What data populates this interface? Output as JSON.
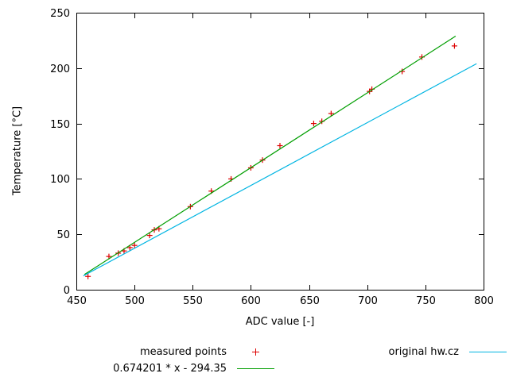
{
  "chart_data": {
    "type": "scatter",
    "title": "",
    "xlabel": "ADC value [-]",
    "ylabel": "Temperature [°C]",
    "xlim": [
      450,
      800
    ],
    "ylim": [
      0,
      250
    ],
    "xticks": [
      450,
      500,
      550,
      600,
      650,
      700,
      750,
      800
    ],
    "yticks": [
      0,
      50,
      100,
      150,
      200,
      250
    ],
    "grid": false,
    "legend_position": "below",
    "series": [
      {
        "name": "measured points",
        "type": "points",
        "marker": "plus",
        "color": "#dd0000",
        "points": [
          [
            460,
            12
          ],
          [
            478,
            30
          ],
          [
            486,
            33
          ],
          [
            491,
            35
          ],
          [
            496,
            38
          ],
          [
            500,
            40
          ],
          [
            513,
            49
          ],
          [
            517,
            54
          ],
          [
            521,
            55
          ],
          [
            548,
            75
          ],
          [
            566,
            89
          ],
          [
            583,
            100
          ],
          [
            600,
            110
          ],
          [
            610,
            117
          ],
          [
            625,
            130
          ],
          [
            654,
            150
          ],
          [
            661,
            152
          ],
          [
            669,
            159
          ],
          [
            702,
            179
          ],
          [
            704,
            181
          ],
          [
            730,
            197
          ],
          [
            747,
            210
          ],
          [
            775,
            220
          ]
        ]
      },
      {
        "name": "0.674201 * x - 294.35",
        "type": "line",
        "color": "#009e00",
        "slope": 0.674201,
        "intercept": -294.35,
        "points": [
          [
            457,
            13.76
          ],
          [
            776,
            228.83
          ]
        ]
      },
      {
        "name": "original hw.cz",
        "type": "line",
        "color": "#00b5e2",
        "points": [
          [
            456,
            12.5
          ],
          [
            794,
            204
          ]
        ]
      }
    ]
  }
}
